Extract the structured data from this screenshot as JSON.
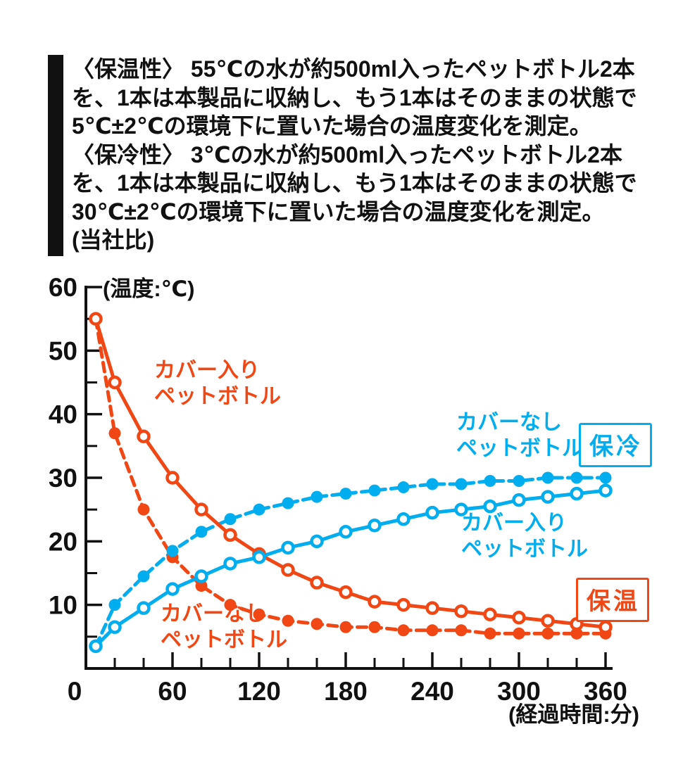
{
  "description_panel": {
    "lines": [
      "〈保温性〉 55℃の水が約500ml入ったペットボトル2本",
      "を、1本は本製品に収納し、もう1本はそのままの状態で",
      "5℃±2℃の環境下に置いた場合の温度変化を測定。",
      "〈保冷性〉 3℃の水が約500ml入ったペットボトル2本",
      "を、1本は本製品に収納し、もう1本はそのままの状態で",
      "30℃±2℃の環境下に置いた場合の温度変化を測定。",
      "(当社比)"
    ]
  },
  "chart_data": {
    "type": "line",
    "ylabel": "(温度:℃)",
    "xlabel": "(経過時間:分)",
    "xlim": [
      0,
      360
    ],
    "ylim": [
      0,
      60
    ],
    "x_major_ticks": [
      0,
      60,
      120,
      180,
      240,
      300,
      360
    ],
    "x_minor_step": 20,
    "y_major_ticks": [
      10,
      20,
      30,
      40,
      50,
      60
    ],
    "y_minor_step": 5,
    "grid": "off",
    "x": [
      0,
      20,
      40,
      60,
      80,
      100,
      120,
      140,
      160,
      180,
      200,
      220,
      240,
      260,
      280,
      300,
      320,
      340,
      360
    ],
    "series": [
      {
        "name": "保温 カバーなしペットボトル",
        "color": "#f04715",
        "style": "dashed",
        "marker": "filled",
        "values": [
          55,
          37,
          25,
          17.5,
          13,
          10,
          8.5,
          7.5,
          7,
          6.5,
          6.5,
          6,
          6,
          6,
          5.5,
          5.5,
          5.5,
          5.5,
          5.5
        ]
      },
      {
        "name": "保冷 カバーなしペットボトル",
        "color": "#00adee",
        "style": "dashed",
        "marker": "filled",
        "values": [
          3.5,
          10,
          14.5,
          18.5,
          21.5,
          23.5,
          25,
          26,
          27,
          27.5,
          28,
          28.5,
          29,
          29,
          29.5,
          29.5,
          30,
          30,
          30
        ]
      },
      {
        "name": "保温 カバー入りペットボトル",
        "color": "#f04715",
        "style": "solid",
        "marker": "open",
        "values": [
          55,
          45,
          36.5,
          30,
          25,
          21,
          18,
          15.5,
          13.5,
          12,
          10.5,
          10,
          9.5,
          9,
          8.5,
          8,
          7.5,
          7,
          6.5
        ]
      },
      {
        "name": "保冷 カバー入りペットボトル",
        "color": "#00adee",
        "style": "solid",
        "marker": "open",
        "values": [
          3.5,
          6.5,
          9.5,
          12.5,
          14.5,
          16.5,
          17.5,
          19,
          20,
          21.5,
          22.5,
          23.5,
          24.5,
          25,
          25.5,
          26.5,
          27,
          27.5,
          28
        ]
      }
    ],
    "annotations": [
      {
        "lines": [
          "カバー入り",
          "ペットボトル"
        ],
        "color": "#f04715"
      },
      {
        "lines": [
          "カバーなし",
          "ペットボトル"
        ],
        "color": "#00adee"
      },
      {
        "lines": [
          "カバー入り",
          "ペットボトル"
        ],
        "color": "#00adee"
      },
      {
        "lines": [
          "カバーなし",
          "ペットボトル"
        ],
        "color": "#f04715"
      }
    ],
    "badges": [
      {
        "label": "保冷",
        "color": "#00adee"
      },
      {
        "label": "保温",
        "color": "#f04715"
      }
    ],
    "axis_color": "#111111"
  }
}
